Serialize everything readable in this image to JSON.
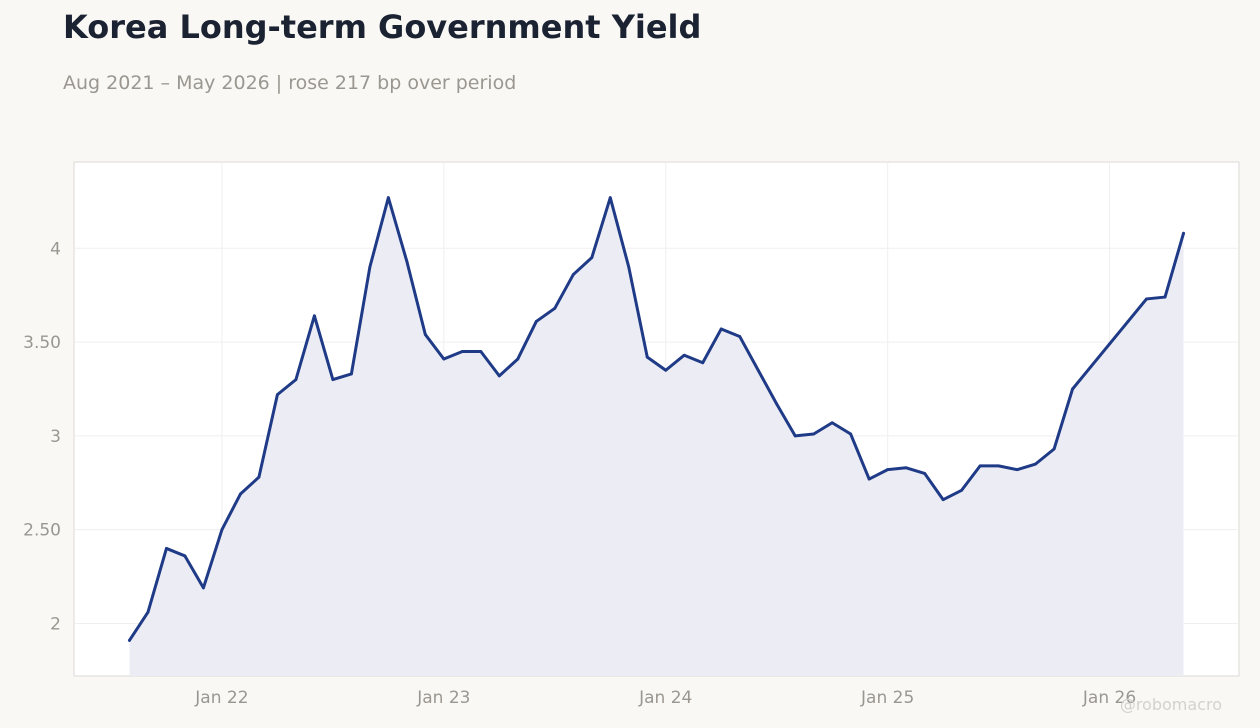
{
  "header": {
    "title": "Korea Long-term Government Yield",
    "subtitle": "Aug 2021 – May 2026 | rose 217 bp over period"
  },
  "watermark": "@robomacro",
  "colors": {
    "line": "#1f3a87",
    "area_fill": "#ecedf4",
    "grid": "#efefef",
    "plot_background": "#ffffff",
    "page_background": "#f9f8f5"
  },
  "chart_data": {
    "type": "area",
    "title": "Korea Long-term Government Yield",
    "subtitle": "Aug 2021 – May 2026 | rose 217 bp over period",
    "xlabel": "",
    "ylabel": "",
    "x": [
      "2021-08",
      "2021-09",
      "2021-10",
      "2021-11",
      "2021-12",
      "2022-01",
      "2022-02",
      "2022-03",
      "2022-04",
      "2022-05",
      "2022-06",
      "2022-07",
      "2022-08",
      "2022-09",
      "2022-10",
      "2022-11",
      "2022-12",
      "2023-01",
      "2023-02",
      "2023-03",
      "2023-04",
      "2023-05",
      "2023-06",
      "2023-07",
      "2023-08",
      "2023-09",
      "2023-10",
      "2023-11",
      "2023-12",
      "2024-01",
      "2024-02",
      "2024-03",
      "2024-04",
      "2024-05",
      "2024-06",
      "2024-07",
      "2024-08",
      "2024-09",
      "2024-10",
      "2024-11",
      "2024-12",
      "2025-01",
      "2025-02",
      "2025-03",
      "2025-04",
      "2025-05",
      "2025-06",
      "2025-07",
      "2025-08",
      "2025-09",
      "2025-10",
      "2025-11",
      "2025-12",
      "2026-01",
      "2026-02",
      "2026-03",
      "2026-04",
      "2026-05"
    ],
    "series": [
      {
        "values": [
          1.91,
          2.06,
          2.4,
          2.36,
          2.19,
          2.5,
          2.69,
          2.78,
          3.22,
          3.3,
          3.64,
          3.3,
          3.33,
          3.9,
          4.27,
          3.93,
          3.54,
          3.41,
          3.45,
          3.45,
          3.32,
          3.41,
          3.61,
          3.68,
          3.86,
          3.95,
          4.27,
          3.9,
          3.42,
          3.35,
          3.43,
          3.39,
          3.57,
          3.53,
          3.35,
          3.17,
          3.0,
          3.01,
          3.07,
          3.01,
          2.77,
          2.82,
          2.83,
          2.8,
          2.66,
          2.71,
          2.84,
          2.84,
          2.82,
          2.85,
          2.93,
          3.25,
          3.37,
          3.49,
          3.61,
          3.73,
          3.74,
          4.08
        ]
      }
    ],
    "x_ticks": [
      {
        "label": "Jan 22",
        "date": "2022-01"
      },
      {
        "label": "Jan 23",
        "date": "2023-01"
      },
      {
        "label": "Jan 24",
        "date": "2024-01"
      },
      {
        "label": "Jan 25",
        "date": "2025-01"
      },
      {
        "label": "Jan 26",
        "date": "2026-01"
      }
    ],
    "y_ticks": [
      {
        "label": "2",
        "value": 2
      },
      {
        "label": "2.50",
        "value": 2.5
      },
      {
        "label": "3",
        "value": 3
      },
      {
        "label": "3.50",
        "value": 3.5
      },
      {
        "label": "4",
        "value": 4
      }
    ],
    "xlim": [
      "2021-05",
      "2026-08"
    ],
    "ylim": [
      1.72,
      4.46
    ],
    "grid": true,
    "legend": "none"
  }
}
